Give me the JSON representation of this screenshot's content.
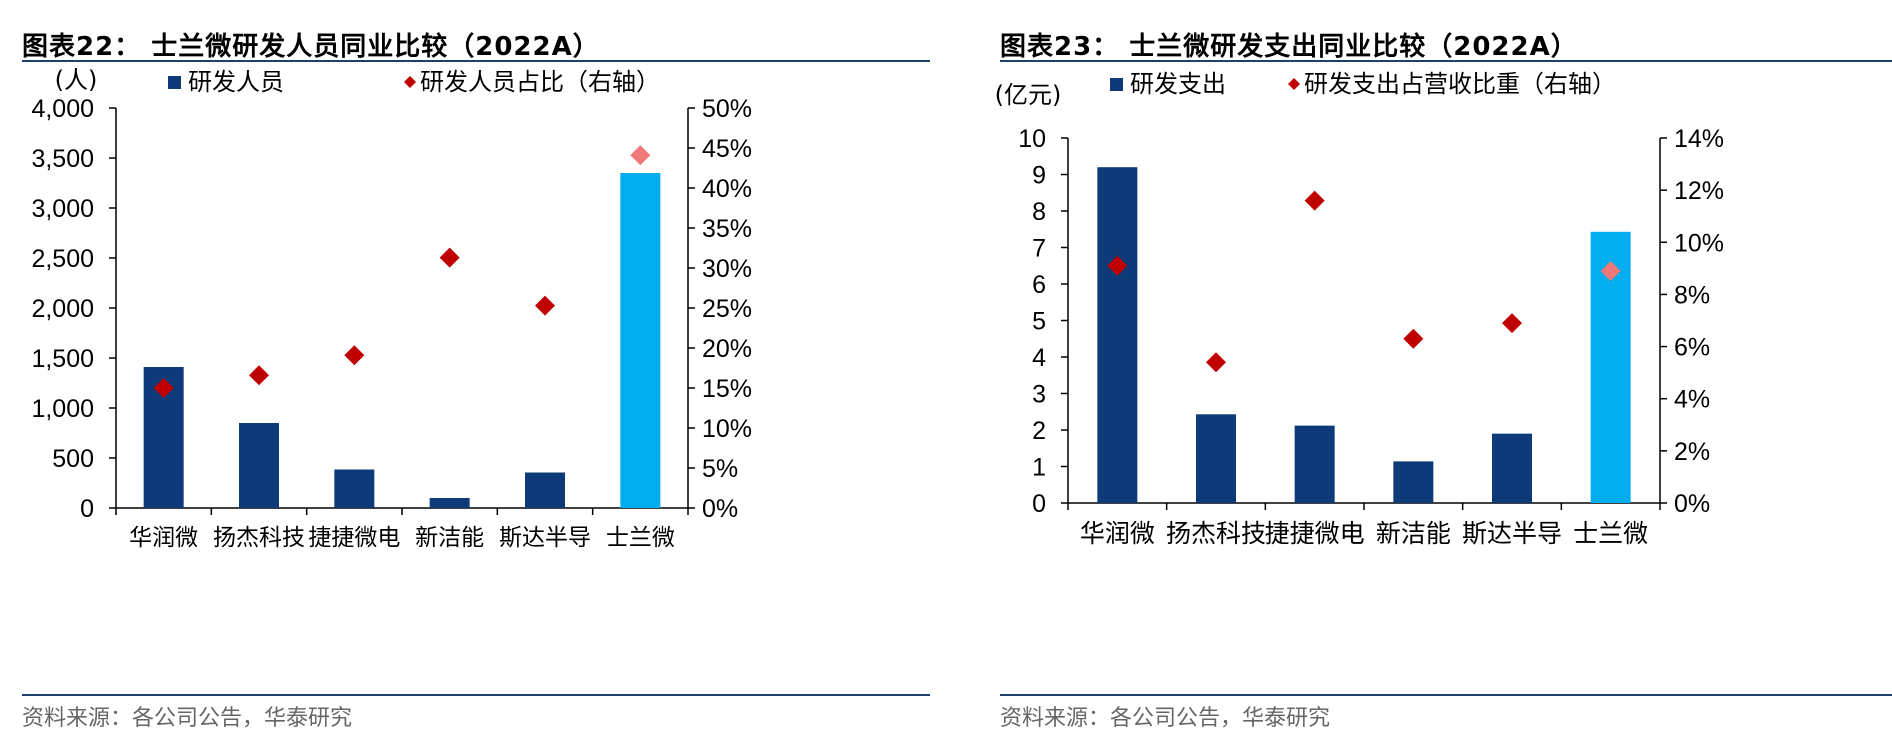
{
  "colors": {
    "navy": "#0f3a7a",
    "highlight_bar": "#00aeef",
    "diamond": "#c00000",
    "highlight_diamond": "#f07878",
    "rule": "#1f3f6e"
  },
  "left": {
    "title": "图表22：  士兰微研发人员同业比较（2022A）",
    "source": "资料来源：各公司公告，华泰研究",
    "chart_data": {
      "type": "bar",
      "categories": [
        "华润微",
        "扬杰科技",
        "捷捷微电",
        "新洁能",
        "斯达半导",
        "士兰微"
      ],
      "highlight_index": 5,
      "ylabel": "(人)",
      "ylim": [
        0,
        4000
      ],
      "yticks": [
        0,
        500,
        1000,
        1500,
        2000,
        2500,
        3000,
        3500,
        4000
      ],
      "ytick_labels": [
        "0",
        "500",
        "1,000",
        "1,500",
        "2,000",
        "2,500",
        "3,000",
        "3,500",
        "4,000"
      ],
      "y2lim": [
        0,
        50
      ],
      "y2ticks": [
        0,
        5,
        10,
        15,
        20,
        25,
        30,
        35,
        40,
        45,
        50
      ],
      "y2tick_labels": [
        "0%",
        "5%",
        "10%",
        "15%",
        "20%",
        "25%",
        "30%",
        "35%",
        "40%",
        "45%",
        "50%"
      ],
      "series": [
        {
          "name": "研发人员",
          "type": "bar",
          "axis": "left",
          "values": [
            1410,
            850,
            385,
            100,
            355,
            3350
          ]
        },
        {
          "name": "研发人员占比（右轴）",
          "type": "scatter",
          "axis": "right",
          "values": [
            15.0,
            16.6,
            19.1,
            31.3,
            25.3,
            44.1
          ]
        }
      ],
      "legend_position": "top"
    }
  },
  "right": {
    "title": "图表23：  士兰微研发支出同业比较（2022A）",
    "source": "资料来源：各公司公告，华泰研究",
    "chart_data": {
      "type": "bar",
      "categories": [
        "华润微",
        "扬杰科技",
        "捷捷微电",
        "新洁能",
        "斯达半导",
        "士兰微"
      ],
      "highlight_index": 5,
      "ylabel": "(亿元)",
      "ylim": [
        0,
        10
      ],
      "yticks": [
        0,
        1,
        2,
        3,
        4,
        5,
        6,
        7,
        8,
        9,
        10
      ],
      "ytick_labels": [
        "0",
        "1",
        "2",
        "3",
        "4",
        "5",
        "6",
        "7",
        "8",
        "9",
        "10"
      ],
      "y2lim": [
        0,
        14
      ],
      "y2ticks": [
        0,
        2,
        4,
        6,
        8,
        10,
        12,
        14
      ],
      "y2tick_labels": [
        "0%",
        "2%",
        "4%",
        "6%",
        "8%",
        "10%",
        "12%",
        "14%"
      ],
      "series": [
        {
          "name": "研发支出",
          "type": "bar",
          "axis": "left",
          "values": [
            9.2,
            2.43,
            2.12,
            1.14,
            1.9,
            7.43
          ]
        },
        {
          "name": "研发支出占营收比重（右轴）",
          "type": "scatter",
          "axis": "right",
          "values": [
            9.1,
            5.4,
            11.6,
            6.3,
            6.9,
            8.9
          ]
        }
      ],
      "legend_position": "top"
    }
  }
}
